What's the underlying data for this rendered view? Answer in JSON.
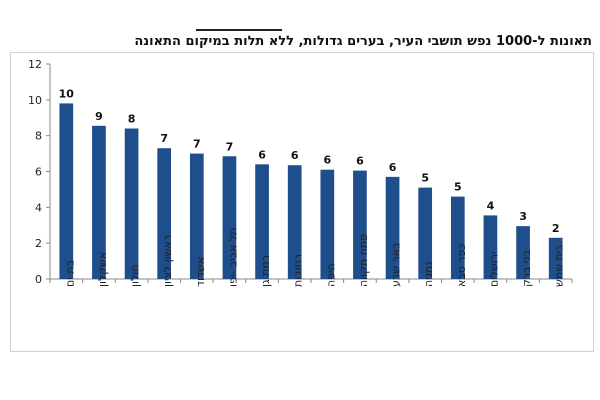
{
  "chart_data": {
    "type": "bar",
    "title": "תאונות ל-1000 נפש תושבי העיר, בערים גדולות, ללא תלות במיקום התאונה",
    "categories": [
      "בת ים",
      "אשקלון",
      "חולון",
      "ראשון לציון",
      "אשדוד",
      "תל אביב -יפו",
      "רמת גן",
      "רחובות",
      "חיפה",
      "פתח תקווה",
      "באר שבע",
      "נתניה",
      "כפר סבא",
      "ירושלים",
      "בני ברק",
      "בית שמש"
    ],
    "values": [
      9.8,
      8.55,
      8.4,
      7.3,
      7.0,
      6.85,
      6.4,
      6.35,
      6.1,
      6.05,
      5.7,
      5.1,
      4.6,
      3.55,
      2.95,
      2.3
    ],
    "data_labels": [
      "10",
      "9",
      "8",
      "7",
      "7",
      "7",
      "6",
      "6",
      "6",
      "6",
      "6",
      "5",
      "5",
      "4",
      "3",
      "2"
    ],
    "ylim": [
      0,
      12
    ],
    "yticks": [
      0,
      2,
      4,
      6,
      8,
      10,
      12
    ],
    "xlabel": "",
    "ylabel": "",
    "bar_color": "#1f4e8c",
    "grid": false,
    "legend": "none"
  }
}
